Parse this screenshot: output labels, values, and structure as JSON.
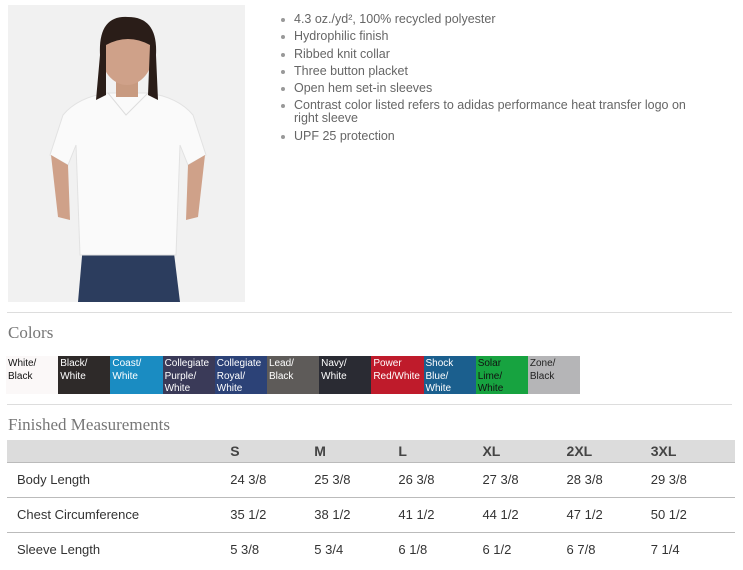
{
  "features": [
    "4.3 oz./yd², 100% recycled polyester",
    "Hydrophilic finish",
    "Ribbed knit collar",
    "Three button placket",
    "Open hem set-in sleeves",
    "Contrast color listed refers to adidas performance heat transfer logo on right sleeve",
    "UPF 25 protection"
  ],
  "colors_title": "Colors",
  "colors": [
    {
      "name": "White/ Black",
      "hex": "#fbf8f8",
      "text": "#111"
    },
    {
      "name": "Black/ White",
      "hex": "#2e2a29",
      "text": "#fff"
    },
    {
      "name": "Coast/ White",
      "hex": "#1a8cc2",
      "text": "#fff"
    },
    {
      "name": "Collegiate Purple/ White",
      "hex": "#3a3a58",
      "text": "#fff"
    },
    {
      "name": "Collegiate Royal/ White",
      "hex": "#2c4277",
      "text": "#fff"
    },
    {
      "name": "Lead/ Black",
      "hex": "#5e5b59",
      "text": "#fff"
    },
    {
      "name": "Navy/ White",
      "hex": "#2a2b33",
      "text": "#fff"
    },
    {
      "name": "Power Red/White",
      "hex": "#bf1b2b",
      "text": "#fff"
    },
    {
      "name": "Shock Blue/ White",
      "hex": "#1b5f8e",
      "text": "#fff"
    },
    {
      "name": "Solar Lime/ White",
      "hex": "#17a340",
      "text": "#111"
    },
    {
      "name": "Zone/ Black",
      "hex": "#b5b5b7",
      "text": "#222"
    }
  ],
  "measurements_title": "Finished Measurements",
  "measurements": {
    "headers": [
      "",
      "S",
      "M",
      "L",
      "XL",
      "2XL",
      "3XL"
    ],
    "rows": [
      [
        "Body Length",
        "24 3/8",
        "25 3/8",
        "26 3/8",
        "27 3/8",
        "28 3/8",
        "29 3/8"
      ],
      [
        "Chest Circumference",
        "35 1/2",
        "38 1/2",
        "41 1/2",
        "44 1/2",
        "47 1/2",
        "50 1/2"
      ],
      [
        "Sleeve Length",
        "5 3/8",
        "5 3/4",
        "6 1/8",
        "6 1/2",
        "6 7/8",
        "7 1/4"
      ]
    ]
  }
}
